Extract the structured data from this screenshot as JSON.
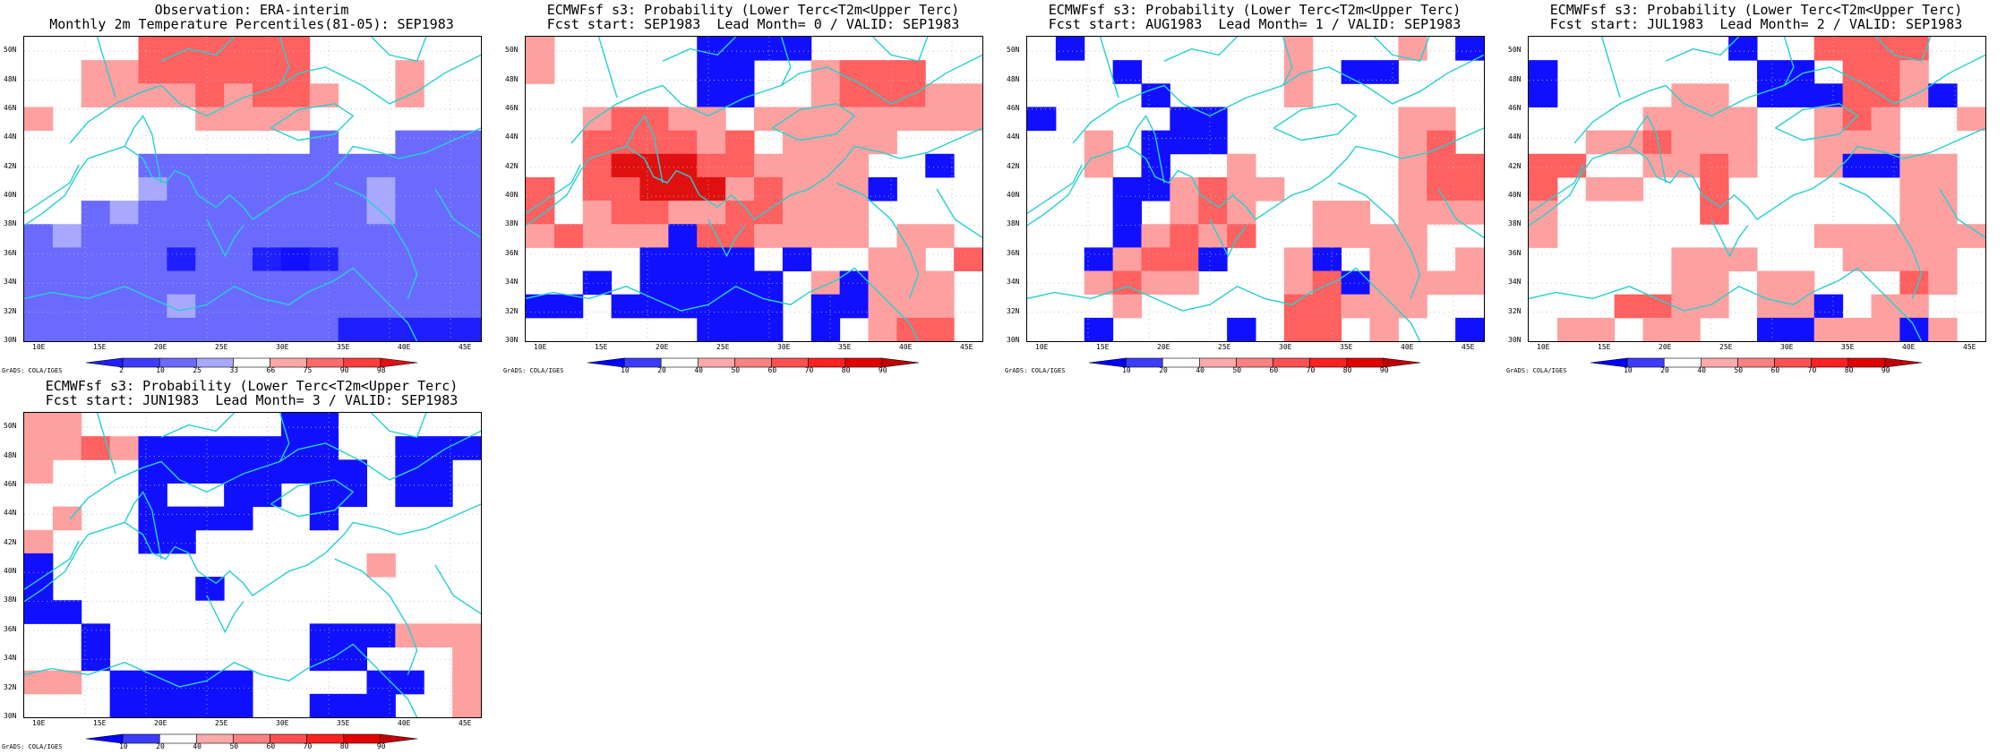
{
  "credit": "GrADS: COLA/IGES",
  "lat_ticks": [
    "30N",
    "32N",
    "34N",
    "36N",
    "38N",
    "40N",
    "42N",
    "44N",
    "46N",
    "48N",
    "50N"
  ],
  "lon_ticks": [
    "10E",
    "15E",
    "20E",
    "25E",
    "30E",
    "35E",
    "40E",
    "45E"
  ],
  "colorbar_obs": {
    "labels": [
      "2",
      "10",
      "25",
      "33",
      "66",
      "75",
      "90",
      "98"
    ],
    "colors": [
      "#1e1eff",
      "#3c3cff",
      "#6a6aff",
      "#a8a8ff",
      "#ffffff",
      "#ffa8a8",
      "#ff6a6a",
      "#ff3c3c",
      "#e01010"
    ]
  },
  "colorbar_prob": {
    "labels": [
      "10",
      "20",
      "40",
      "50",
      "60",
      "70",
      "80",
      "90"
    ],
    "colors": [
      "#0000ff",
      "#3c3cff",
      "#ffffff",
      "#ffaaaa",
      "#ff8080",
      "#ff5050",
      "#ff2020",
      "#e00000",
      "#c00000"
    ]
  },
  "colors": {
    "coast": "#27d0d0",
    "grid": "#bbbbbb"
  },
  "panels": [
    {
      "id": "obs",
      "title_line1": "Observation: ERA-interim",
      "title_line2": "Monthly 2m Temperature Percentiles(81-05): SEP1983",
      "colorbar": "obs",
      "cells": [
        "....RRRRRR......",
        "..ppRRRRRR...p..",
        "..ppppRpRRp..p..",
        "p.....pppp......",
        "..........b..bbb",
        "....bbbbbbbbbbbb",
        "....BbbbbbbbBbbb",
        "..bBbbbbbbbbBbbb",
        "bBbbbbbbbbbbbbbb",
        "bbbbbdbbdDdbbbbb",
        "bbbbbbbbbbbbbbbb",
        "bbbbbBbbbbbbbbbb",
        "bbbbbbbbbbbddddd"
      ]
    },
    {
      "id": "lead0",
      "title_line1": "ECMWFsf s3: Probability (Lower Terc<T2m<Upper Terc)",
      "title_line2": "Fcst start: SEP1983  Lead Month= 0 / VALID: SEP1983",
      "colorbar": "prob",
      "cells": [
        "p.....DDDD......",
        "p.....DD..pRRR..",
        "......DD..pRRRpp",
        "..pRRpp.pppppppp",
        "..RRRRpR.pppp...",
        "..RrrrRRpppp..D.",
        "R.RRrrrpRpppD...",
        "R.pRRppRRppp....",
        "pRpppDRRpppp.pp.",
        "....DDDD.D..pp.R",
        "..D.DDDDD.pDppp.",
        "DD.DDDDDD.DDppp.",
        "......DDD.D.pRR."
      ]
    },
    {
      "id": "lead1",
      "title_line1": "ECMWFsf s3: Probability (Lower Terc<T2m<Upper Terc)",
      "title_line2": "Fcst start: AUG1983  Lead Month= 1 / VALID: SEP1983",
      "colorbar": "prob",
      "cells": [
        ".D.......p...p.D",
        "...D.....p.DD...",
        "....D....p......",
        "D....DD......pp.",
        "..p.DDD......pR.",
        "..p.D..p.....pRR",
        "...DDpRpp....pRR",
        "...D.pRp..pp.ppp",
        "...DpRpR..pppp..",
        "..DpRRD..pD.pp.p",
        "..pRpp...pRDpppp",
        "...p.....RRppp..",
        "..D....D.RR.p..D"
      ]
    },
    {
      "id": "lead2",
      "title_line1": "ECMWFsf s3: Probability (Lower Terc<T2m<Upper Terc)",
      "title_line2": "Fcst start: JUL1983  Lead Month= 2 / VALID: SEP1983",
      "colorbar": "prob",
      "cells": [
        ".......D..RRRR..",
        "D.......DD.RRp..",
        "D....pp.DDDRRpD.",
        "....pppp..pRp..p",
        "..ppRppp..ppp...",
        "RR..ppRp..pDDpp.",
        "R.pp..R......pp.",
        "p.....R......pp.",
        "p.........pppppp",
        ".....ppp...pppp.",
        ".....pp.pp...Rp.",
        "...RRpp.ppD.pp..",
        ".pp.pp..DDpppDp."
      ]
    },
    {
      "id": "lead3",
      "title_line1": "ECMWFsf s3: Probability (Lower Terc<T2m<Upper Terc)",
      "title_line2": "Fcst start: JUN1983  Lead Month= 3 / VALID: SEP1983",
      "colorbar": "prob",
      "cells": [
        "pp.......DD.....",
        "ppRpDDDDDDD..DDD",
        "p...DDDDDDDD.DD.",
        "....D..DD.DD.DD.",
        ".p..DDDD..D.....",
        "p...DD..........",
        "D...........p...",
        "D.....D.........",
        "DD..............",
        "..D.......DDDppp",
        "..D.......DD...p",
        "pp.DDDDD....DD.p",
        "...DDDDD..DDD..p"
      ]
    }
  ]
}
